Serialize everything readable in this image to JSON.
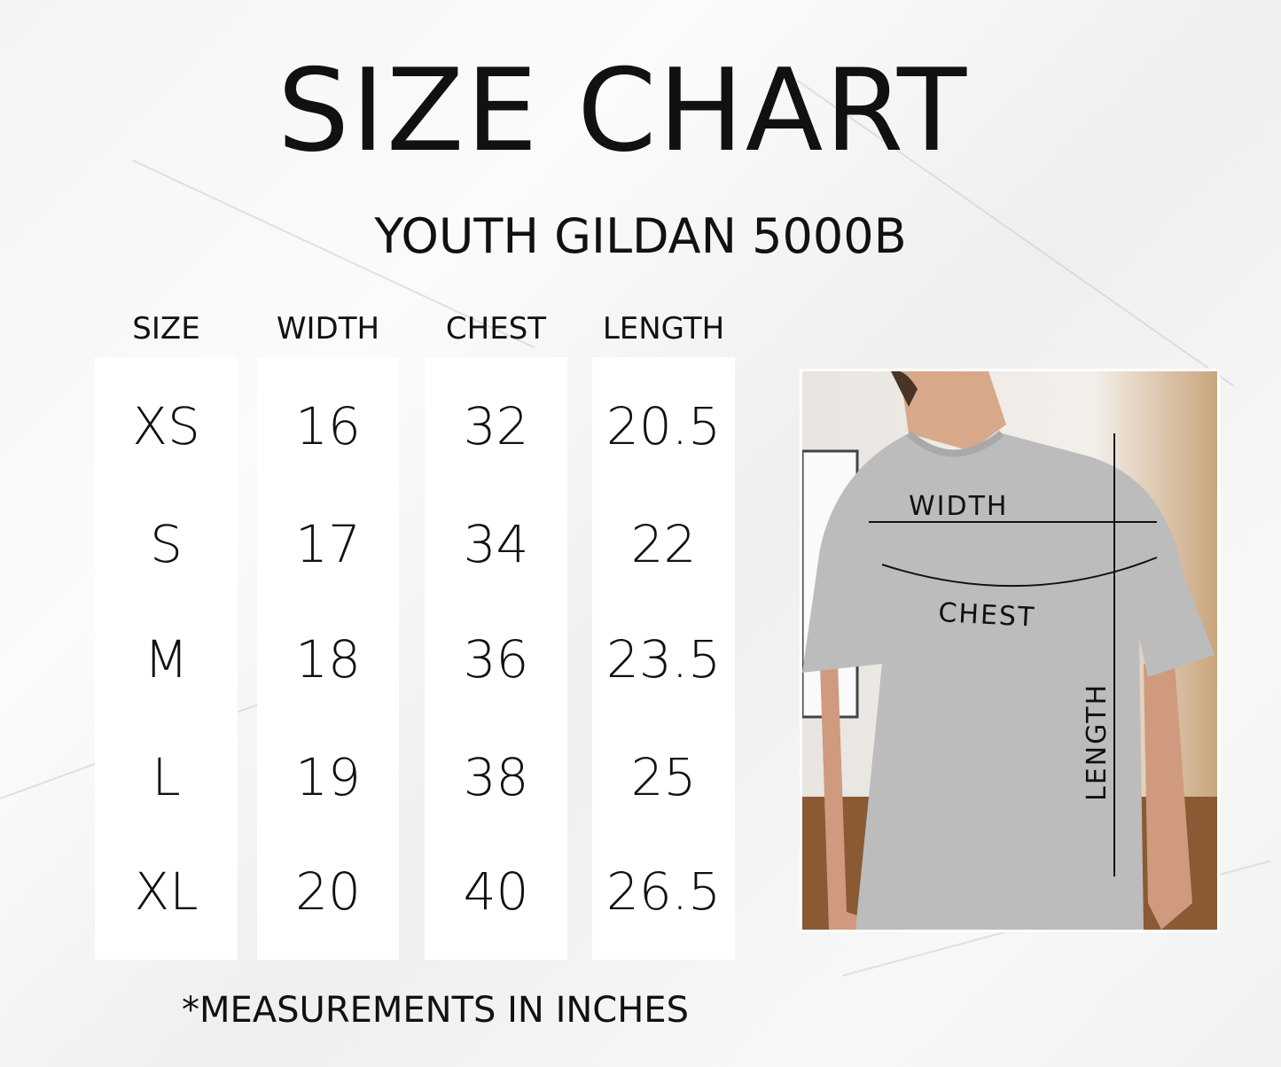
{
  "title": "SIZE CHART",
  "subtitle": "YOUTH GILDAN 5000B",
  "footer": "*MEASUREMENTS  IN INCHES",
  "photo_labels": {
    "width": "WIDTH",
    "chest": "CHEST",
    "length": "LENGTH"
  },
  "chart_data": {
    "type": "table",
    "title": "SIZE CHART",
    "columns": [
      "SIZE",
      "WIDTH",
      "CHEST",
      "LENGTH"
    ],
    "rows": [
      [
        "XS",
        "16",
        "32",
        "20.5"
      ],
      [
        "S",
        "17",
        "34",
        "22"
      ],
      [
        "M",
        "18",
        "36",
        "23.5"
      ],
      [
        "L",
        "19",
        "38",
        "25"
      ],
      [
        "XL",
        "20",
        "40",
        "26.5"
      ]
    ],
    "unit": "inches"
  }
}
